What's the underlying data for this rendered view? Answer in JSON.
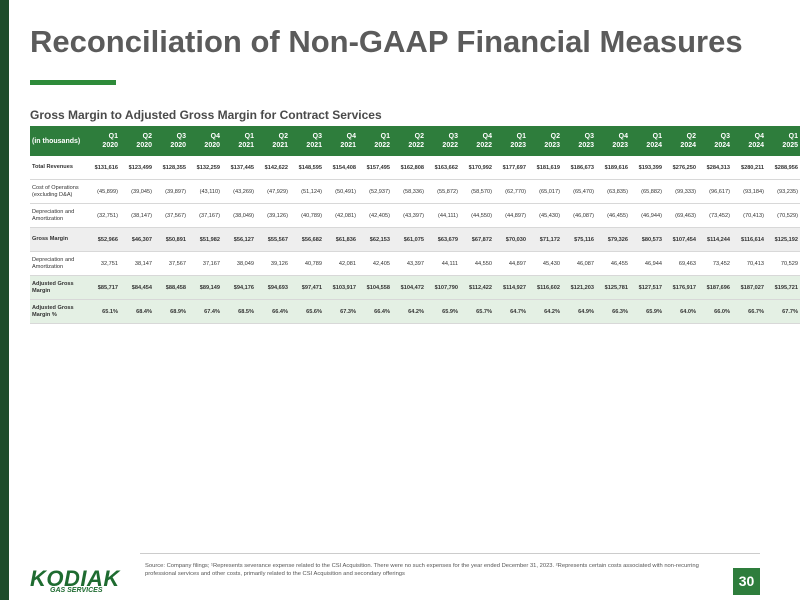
{
  "header": {
    "title": "Reconciliation of Non-GAAP Financial Measures",
    "subtitle": "Gross Margin to Adjusted Gross Margin for Contract Services"
  },
  "table": {
    "corner": "(in thousands)",
    "columns": [
      {
        "quarter": "Q1",
        "year": "2020"
      },
      {
        "quarter": "Q2",
        "year": "2020"
      },
      {
        "quarter": "Q3",
        "year": "2020"
      },
      {
        "quarter": "Q4",
        "year": "2020"
      },
      {
        "quarter": "Q1",
        "year": "2021"
      },
      {
        "quarter": "Q2",
        "year": "2021"
      },
      {
        "quarter": "Q3",
        "year": "2021"
      },
      {
        "quarter": "Q4",
        "year": "2021"
      },
      {
        "quarter": "Q1",
        "year": "2022"
      },
      {
        "quarter": "Q2",
        "year": "2022"
      },
      {
        "quarter": "Q3",
        "year": "2022"
      },
      {
        "quarter": "Q4",
        "year": "2022"
      },
      {
        "quarter": "Q1",
        "year": "2023"
      },
      {
        "quarter": "Q2",
        "year": "2023"
      },
      {
        "quarter": "Q3",
        "year": "2023"
      },
      {
        "quarter": "Q4",
        "year": "2023"
      },
      {
        "quarter": "Q1",
        "year": "2024"
      },
      {
        "quarter": "Q2",
        "year": "2024"
      },
      {
        "quarter": "Q3",
        "year": "2024"
      },
      {
        "quarter": "Q4",
        "year": "2024"
      },
      {
        "quarter": "Q1",
        "year": "2025"
      }
    ],
    "rows": [
      {
        "label": "Total Revenues",
        "values": [
          "$131,616",
          "$123,499",
          "$128,355",
          "$132,259",
          "$137,445",
          "$142,622",
          "$148,595",
          "$154,408",
          "$157,495",
          "$162,808",
          "$163,662",
          "$170,992",
          "$177,697",
          "$181,619",
          "$186,673",
          "$189,616",
          "$193,399",
          "$276,250",
          "$284,313",
          "$280,211",
          "$288,956"
        ]
      },
      {
        "label": "Cost of Operations (excluding D&A)",
        "values": [
          "(45,899)",
          "(39,045)",
          "(39,897)",
          "(43,110)",
          "(43,269)",
          "(47,929)",
          "(51,124)",
          "(50,491)",
          "(52,937)",
          "(58,336)",
          "(55,872)",
          "(58,570)",
          "(62,770)",
          "(65,017)",
          "(65,470)",
          "(63,835)",
          "(65,882)",
          "(99,333)",
          "(96,617)",
          "(93,184)",
          "(93,235)"
        ]
      },
      {
        "label": "Depreciation and Amortization",
        "values": [
          "(32,751)",
          "(38,147)",
          "(37,567)",
          "(37,167)",
          "(38,049)",
          "(39,126)",
          "(40,789)",
          "(42,081)",
          "(42,405)",
          "(43,397)",
          "(44,111)",
          "(44,550)",
          "(44,897)",
          "(45,430)",
          "(46,087)",
          "(46,455)",
          "(46,944)",
          "(69,463)",
          "(73,452)",
          "(70,413)",
          "(70,529)"
        ]
      },
      {
        "label": "Gross Margin",
        "values": [
          "$52,966",
          "$46,307",
          "$50,891",
          "$51,982",
          "$56,127",
          "$55,567",
          "$56,682",
          "$61,836",
          "$62,153",
          "$61,075",
          "$63,679",
          "$67,872",
          "$70,030",
          "$71,172",
          "$75,116",
          "$79,326",
          "$80,573",
          "$107,454",
          "$114,244",
          "$116,614",
          "$125,192"
        ]
      },
      {
        "label": "Depreciation and Amortization",
        "values": [
          "32,751",
          "38,147",
          "37,567",
          "37,167",
          "38,049",
          "39,126",
          "40,789",
          "42,081",
          "42,405",
          "43,397",
          "44,111",
          "44,550",
          "44,897",
          "45,430",
          "46,087",
          "46,455",
          "46,944",
          "69,463",
          "73,452",
          "70,413",
          "70,529"
        ]
      },
      {
        "label": "Adjusted Gross Margin",
        "values": [
          "$85,717",
          "$84,454",
          "$88,458",
          "$89,149",
          "$94,176",
          "$94,693",
          "$97,471",
          "$103,917",
          "$104,558",
          "$104,472",
          "$107,790",
          "$112,422",
          "$114,927",
          "$116,602",
          "$121,203",
          "$125,781",
          "$127,517",
          "$176,917",
          "$187,696",
          "$187,027",
          "$195,721"
        ]
      },
      {
        "label": "Adjusted Gross Margin %",
        "values": [
          "65.1%",
          "68.4%",
          "68.9%",
          "67.4%",
          "68.5%",
          "66.4%",
          "65.6%",
          "67.3%",
          "66.4%",
          "64.2%",
          "65.9%",
          "65.7%",
          "64.7%",
          "64.2%",
          "64.9%",
          "66.3%",
          "65.9%",
          "64.0%",
          "66.0%",
          "66.7%",
          "67.7%"
        ]
      }
    ]
  },
  "footer": {
    "source": "Source: Company filings; ¹Represents severance expense related to the CSI Acquisition.  There were no such expenses for the year ended December 31, 2023.  ²Represents certain costs associated with non-recurring professional services and other costs, primarily related to the CSI Acquisition and secondary offerings",
    "logo": "KODIAK",
    "logo_sub": "GAS SERVICES",
    "page": "30"
  }
}
